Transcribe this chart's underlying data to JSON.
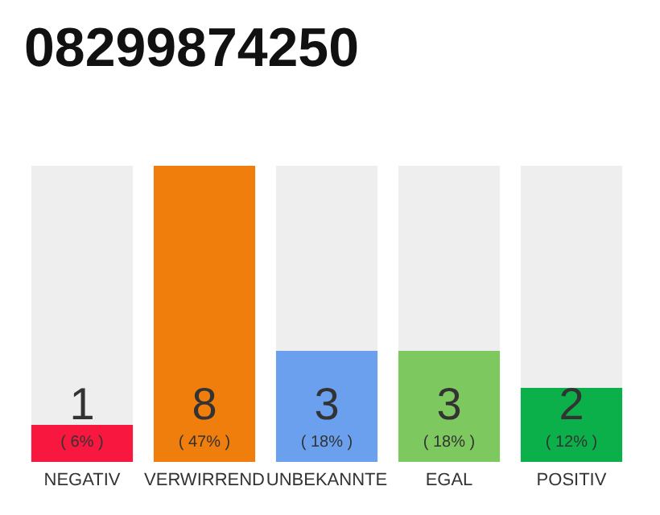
{
  "chart_data": {
    "type": "bar",
    "title": "08299874250",
    "categories": [
      "NEGATIV",
      "VERWIRREND",
      "UNBEKANNTE",
      "EGAL",
      "POSITIV"
    ],
    "values": [
      1,
      8,
      3,
      3,
      2
    ],
    "colors": [
      "#f8173e",
      "#f07e0d",
      "#6aa0ee",
      "#7ec95f",
      "#0cb04a"
    ],
    "data_labels": true,
    "annotations": [
      "( 6% )",
      "( 47% )",
      "( 18% )",
      "( 18% )",
      "( 12% )"
    ],
    "grid": false
  }
}
